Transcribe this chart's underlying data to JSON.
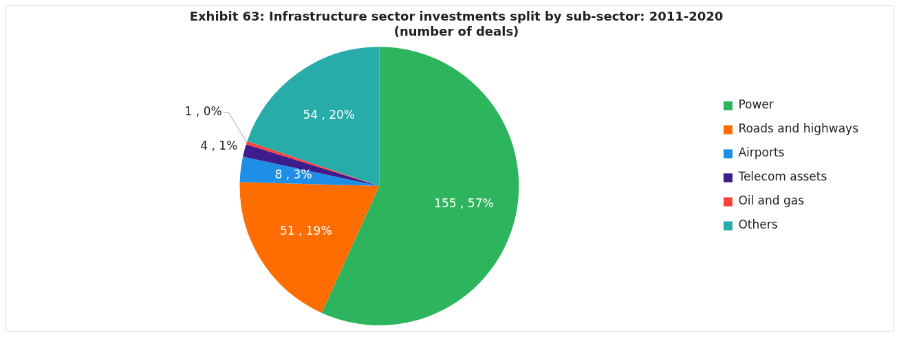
{
  "chart_data": {
    "type": "pie",
    "title": [
      "Exhibit 63: Infrastructure sector investments split by sub-sector: 2011-2020",
      "(number of deals)"
    ],
    "categories": [
      "Power",
      "Roads and highways",
      "Airports",
      "Telecom assets",
      "Oil and gas",
      "Others"
    ],
    "values": [
      155,
      51,
      8,
      4,
      1,
      54
    ],
    "colors": [
      "#2db55d",
      "#ff6d00",
      "#1f8ee6",
      "#3d1c8c",
      "#ff4136",
      "#27acaa"
    ],
    "value_labels": [
      "155 , 57%",
      "51 , 19%",
      "8 , 3%",
      "4 , 1%",
      "1 , 0%",
      "54 , 20%"
    ],
    "legend": "right"
  }
}
